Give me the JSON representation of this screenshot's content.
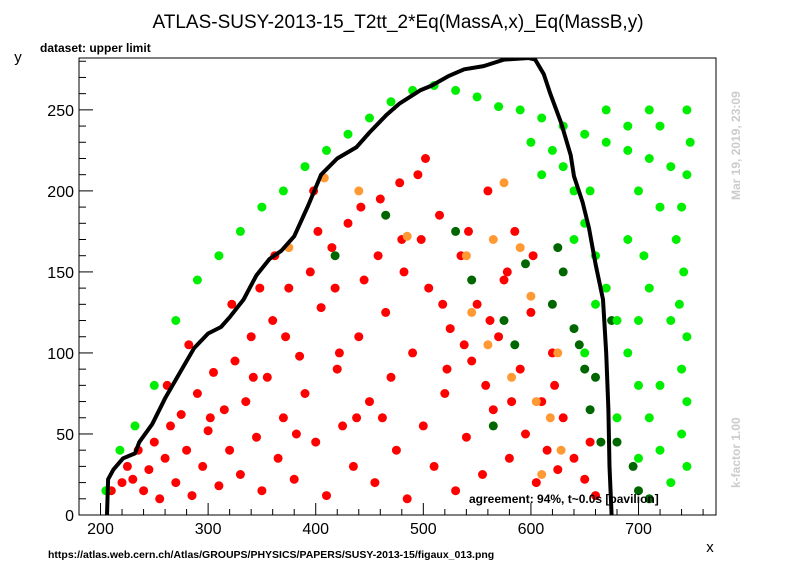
{
  "chart_data": {
    "type": "scatter",
    "title": "ATLAS-SUSY-2013-15_T2tt_2*Eq(MassA,x)_Eq(MassB,y)",
    "xlabel": "x",
    "ylabel": "y",
    "xlim": [
      180,
      772
    ],
    "ylim": [
      0,
      282
    ],
    "x_ticks": [
      200,
      300,
      400,
      500,
      600,
      700
    ],
    "y_ticks": [
      0,
      50,
      100,
      150,
      200,
      250
    ],
    "dataset_label": "dataset: upper limit",
    "agreement_label": "agreement: 94%, t~0.0s [pavilion]",
    "timestamp_label": "Mar 19, 2019, 23:09",
    "kfactor_label": "k-factor 1.00",
    "source_url": "https://atlas.web.cern.ch/Atlas/GROUPS/PHYSICS/PAPERS/SUSY-2013-15/figaux_013.png",
    "colors": {
      "excluded": "#ff0000",
      "excluded_disagree": "#ff9933",
      "allowed_disagree": "#006600",
      "allowed": "#00ee00",
      "contour": "#000000"
    },
    "series": [
      {
        "color": "#ff0000",
        "points": [
          [
            210,
            15
          ],
          [
            220,
            20
          ],
          [
            225,
            30
          ],
          [
            230,
            22
          ],
          [
            235,
            40
          ],
          [
            240,
            15
          ],
          [
            245,
            28
          ],
          [
            250,
            45
          ],
          [
            255,
            10
          ],
          [
            260,
            35
          ],
          [
            265,
            55
          ],
          [
            270,
            20
          ],
          [
            275,
            62
          ],
          [
            280,
            40
          ],
          [
            285,
            12
          ],
          [
            290,
            75
          ],
          [
            295,
            30
          ],
          [
            300,
            52
          ],
          [
            305,
            88
          ],
          [
            310,
            18
          ],
          [
            315,
            65
          ],
          [
            320,
            40
          ],
          [
            325,
            95
          ],
          [
            330,
            25
          ],
          [
            335,
            70
          ],
          [
            340,
            110
          ],
          [
            345,
            48
          ],
          [
            350,
            15
          ],
          [
            355,
            85
          ],
          [
            360,
            120
          ],
          [
            365,
            35
          ],
          [
            370,
            60
          ],
          [
            375,
            140
          ],
          [
            380,
            22
          ],
          [
            385,
            98
          ],
          [
            390,
            75
          ],
          [
            395,
            150
          ],
          [
            400,
            45
          ],
          [
            405,
            128
          ],
          [
            410,
            12
          ],
          [
            415,
            165
          ],
          [
            420,
            90
          ],
          [
            425,
            55
          ],
          [
            430,
            180
          ],
          [
            435,
            30
          ],
          [
            440,
            110
          ],
          [
            445,
            145
          ],
          [
            450,
            70
          ],
          [
            455,
            20
          ],
          [
            460,
            195
          ],
          [
            465,
            125
          ],
          [
            470,
            85
          ],
          [
            475,
            40
          ],
          [
            480,
            170
          ],
          [
            485,
            10
          ],
          [
            490,
            100
          ],
          [
            495,
            210
          ],
          [
            500,
            55
          ],
          [
            505,
            140
          ],
          [
            510,
            30
          ],
          [
            515,
            185
          ],
          [
            520,
            75
          ],
          [
            525,
            115
          ],
          [
            530,
            15
          ],
          [
            535,
            160
          ],
          [
            540,
            48
          ],
          [
            545,
            95
          ],
          [
            550,
            130
          ],
          [
            555,
            25
          ],
          [
            560,
            200
          ],
          [
            565,
            65
          ],
          [
            570,
            110
          ],
          [
            575,
            145
          ],
          [
            580,
            35
          ],
          [
            585,
            175
          ],
          [
            590,
            90
          ],
          [
            595,
            50
          ],
          [
            600,
            125
          ],
          [
            605,
            20
          ],
          [
            610,
            70
          ],
          [
            615,
            40
          ],
          [
            620,
            100
          ],
          [
            625,
            28
          ],
          [
            630,
            60
          ],
          [
            640,
            35
          ],
          [
            650,
            22
          ],
          [
            655,
            45
          ],
          [
            660,
            12
          ],
          [
            262,
            80
          ],
          [
            282,
            105
          ],
          [
            302,
            60
          ],
          [
            322,
            130
          ],
          [
            342,
            85
          ],
          [
            362,
            160
          ],
          [
            382,
            50
          ],
          [
            402,
            175
          ],
          [
            422,
            100
          ],
          [
            442,
            190
          ],
          [
            462,
            60
          ],
          [
            482,
            150
          ],
          [
            502,
            220
          ],
          [
            522,
            90
          ],
          [
            542,
            175
          ],
          [
            562,
            120
          ],
          [
            582,
            70
          ],
          [
            602,
            160
          ],
          [
            622,
            80
          ],
          [
            348,
            140
          ],
          [
            372,
            110
          ],
          [
            398,
            200
          ],
          [
            418,
            140
          ],
          [
            438,
            60
          ],
          [
            458,
            160
          ],
          [
            478,
            205
          ],
          [
            498,
            170
          ],
          [
            518,
            130
          ],
          [
            538,
            105
          ],
          [
            558,
            80
          ],
          [
            578,
            150
          ]
        ]
      },
      {
        "color": "#ff9933",
        "points": [
          [
            375,
            165
          ],
          [
            408,
            208
          ],
          [
            440,
            200
          ],
          [
            485,
            172
          ],
          [
            540,
            160
          ],
          [
            545,
            125
          ],
          [
            560,
            105
          ],
          [
            565,
            170
          ],
          [
            575,
            205
          ],
          [
            582,
            85
          ],
          [
            590,
            165
          ],
          [
            600,
            135
          ],
          [
            605,
            70
          ],
          [
            618,
            60
          ],
          [
            628,
            40
          ],
          [
            625,
            100
          ],
          [
            610,
            25
          ]
        ]
      },
      {
        "color": "#006600",
        "points": [
          [
            418,
            160
          ],
          [
            465,
            185
          ],
          [
            530,
            175
          ],
          [
            545,
            145
          ],
          [
            565,
            55
          ],
          [
            575,
            120
          ],
          [
            585,
            105
          ],
          [
            595,
            155
          ],
          [
            620,
            130
          ],
          [
            625,
            165
          ],
          [
            630,
            150
          ],
          [
            640,
            115
          ],
          [
            645,
            105
          ],
          [
            650,
            90
          ],
          [
            655,
            65
          ],
          [
            660,
            85
          ],
          [
            665,
            45
          ],
          [
            675,
            120
          ],
          [
            680,
            45
          ],
          [
            695,
            30
          ],
          [
            700,
            15
          ],
          [
            710,
            10
          ]
        ]
      },
      {
        "color": "#00ee00",
        "points": [
          [
            205,
            15
          ],
          [
            218,
            40
          ],
          [
            232,
            55
          ],
          [
            250,
            80
          ],
          [
            270,
            120
          ],
          [
            290,
            145
          ],
          [
            310,
            160
          ],
          [
            330,
            175
          ],
          [
            350,
            190
          ],
          [
            370,
            200
          ],
          [
            390,
            215
          ],
          [
            410,
            225
          ],
          [
            430,
            235
          ],
          [
            450,
            245
          ],
          [
            470,
            255
          ],
          [
            490,
            262
          ],
          [
            510,
            265
          ],
          [
            530,
            262
          ],
          [
            550,
            258
          ],
          [
            570,
            252
          ],
          [
            590,
            250
          ],
          [
            610,
            245
          ],
          [
            630,
            240
          ],
          [
            650,
            235
          ],
          [
            670,
            230
          ],
          [
            690,
            225
          ],
          [
            710,
            220
          ],
          [
            730,
            215
          ],
          [
            745,
            250
          ],
          [
            748,
            230
          ],
          [
            745,
            210
          ],
          [
            740,
            190
          ],
          [
            735,
            170
          ],
          [
            742,
            150
          ],
          [
            738,
            130
          ],
          [
            745,
            110
          ],
          [
            740,
            90
          ],
          [
            745,
            70
          ],
          [
            740,
            50
          ],
          [
            745,
            30
          ],
          [
            730,
            20
          ],
          [
            720,
            40
          ],
          [
            710,
            60
          ],
          [
            700,
            80
          ],
          [
            690,
            100
          ],
          [
            680,
            120
          ],
          [
            670,
            140
          ],
          [
            660,
            160
          ],
          [
            650,
            180
          ],
          [
            640,
            200
          ],
          [
            630,
            215
          ],
          [
            620,
            225
          ],
          [
            610,
            210
          ],
          [
            600,
            230
          ],
          [
            710,
            250
          ],
          [
            720,
            240
          ],
          [
            700,
            200
          ],
          [
            720,
            190
          ],
          [
            690,
            170
          ],
          [
            710,
            140
          ],
          [
            730,
            120
          ],
          [
            700,
            120
          ],
          [
            680,
            60
          ],
          [
            720,
            80
          ],
          [
            700,
            35
          ],
          [
            705,
            160
          ],
          [
            690,
            240
          ],
          [
            670,
            250
          ],
          [
            655,
            200
          ],
          [
            640,
            170
          ],
          [
            660,
            130
          ],
          [
            650,
            100
          ]
        ]
      }
    ],
    "contour": [
      [
        206,
        0
      ],
      [
        207,
        22
      ],
      [
        212,
        28
      ],
      [
        221,
        35
      ],
      [
        232,
        38
      ],
      [
        236,
        45
      ],
      [
        248,
        56
      ],
      [
        260,
        72
      ],
      [
        273,
        87
      ],
      [
        287,
        103
      ],
      [
        300,
        112
      ],
      [
        312,
        116
      ],
      [
        320,
        122
      ],
      [
        333,
        133
      ],
      [
        345,
        148
      ],
      [
        357,
        158
      ],
      [
        368,
        163
      ],
      [
        380,
        172
      ],
      [
        393,
        191
      ],
      [
        405,
        210
      ],
      [
        420,
        220
      ],
      [
        438,
        227
      ],
      [
        450,
        236
      ],
      [
        466,
        247
      ],
      [
        478,
        254
      ],
      [
        497,
        262
      ],
      [
        508,
        265
      ],
      [
        524,
        271
      ],
      [
        538,
        275
      ],
      [
        556,
        277
      ],
      [
        575,
        281
      ],
      [
        598,
        282
      ],
      [
        604,
        281
      ],
      [
        612,
        272
      ],
      [
        618,
        260
      ],
      [
        628,
        242
      ],
      [
        637,
        222
      ],
      [
        640,
        209
      ],
      [
        648,
        193
      ],
      [
        654,
        177
      ],
      [
        660,
        155
      ],
      [
        667,
        133
      ],
      [
        670,
        100
      ],
      [
        672,
        65
      ],
      [
        673,
        30
      ],
      [
        675,
        0
      ]
    ]
  }
}
